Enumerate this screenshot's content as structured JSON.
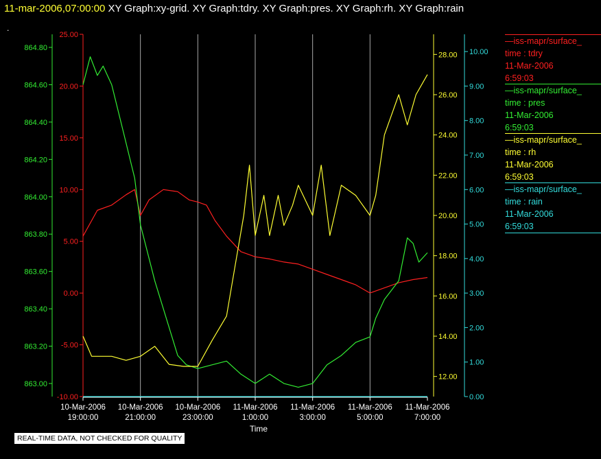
{
  "header": {
    "timestamp": "11-mar-2006,07:00:00",
    "graphs": "XY Graph:xy-grid.  XY Graph:tdry.  XY Graph:pres.  XY Graph:rh.  XY Graph:rain"
  },
  "dot": ".",
  "disclaimer": "REAL-TIME DATA, NOT CHECKED FOR QUALITY",
  "legend": [
    {
      "source": "iss-mapr/surface_",
      "field": "time : tdry",
      "date": "11-Mar-2006",
      "time": "6:59:03",
      "color": "#ff2020"
    },
    {
      "source": "iss-mapr/surface_",
      "field": "time : pres",
      "date": "11-Mar-2006",
      "time": "6:59:03",
      "color": "#33ee33"
    },
    {
      "source": "iss-mapr/surface_",
      "field": "time : rh",
      "date": "11-Mar-2006",
      "time": "6:59:03",
      "color": "#ffff33"
    },
    {
      "source": "iss-mapr/surface_",
      "field": "time : rain",
      "date": "11-Mar-2006",
      "time": "6:59:03",
      "color": "#33dddd"
    }
  ],
  "chart_data": {
    "type": "line",
    "xlabel": "Time",
    "x_ticks": [
      {
        "date": "10-Mar-2006",
        "time": "19:00:00",
        "hour": 0
      },
      {
        "date": "10-Mar-2006",
        "time": "21:00:00",
        "hour": 2
      },
      {
        "date": "10-Mar-2006",
        "time": "23:00:00",
        "hour": 4
      },
      {
        "date": "11-Mar-2006",
        "time": "1:00:00",
        "hour": 6
      },
      {
        "date": "11-Mar-2006",
        "time": "3:00:00",
        "hour": 8
      },
      {
        "date": "11-Mar-2006",
        "time": "5:00:00",
        "hour": 10
      },
      {
        "date": "11-Mar-2006",
        "time": "7:00:00",
        "hour": 12
      }
    ],
    "xlim": [
      0,
      12
    ],
    "grid": "vertical",
    "axes": {
      "pres": {
        "color": "#33ee33",
        "ylim": [
          862.93,
          864.87
        ],
        "ticks": [
          "863.00",
          "863.20",
          "863.40",
          "863.60",
          "863.80",
          "864.00",
          "864.20",
          "864.40",
          "864.60",
          "864.80"
        ]
      },
      "tdry": {
        "color": "#ff2020",
        "ylim": [
          -10.0,
          25.0
        ],
        "ticks": [
          "-10.00",
          "-5.00",
          "0.00",
          "5.00",
          "10.00",
          "15.00",
          "20.00",
          "25.00"
        ]
      },
      "rh": {
        "color": "#ffff33",
        "ylim": [
          11.0,
          29.0
        ],
        "ticks": [
          "12.00",
          "14.00",
          "16.00",
          "18.00",
          "20.00",
          "22.00",
          "24.00",
          "26.00",
          "28.00"
        ]
      },
      "rain": {
        "color": "#33dddd",
        "ylim": [
          0.0,
          10.5
        ],
        "ticks": [
          "0.00",
          "1.00",
          "2.00",
          "3.00",
          "4.00",
          "5.00",
          "6.00",
          "7.00",
          "8.00",
          "9.00",
          "10.00"
        ]
      }
    },
    "series": [
      {
        "name": "tdry",
        "axis": "tdry",
        "color": "#ff2020",
        "x": [
          0,
          0.5,
          1,
          1.5,
          1.8,
          2,
          2.3,
          2.8,
          3.3,
          3.7,
          4,
          4.3,
          4.6,
          5,
          5.5,
          6,
          6.5,
          7,
          7.5,
          8,
          8.5,
          9,
          9.5,
          10,
          10.5,
          11,
          11.5,
          12
        ],
        "y": [
          5.5,
          8,
          8.5,
          9.5,
          10,
          7.5,
          9,
          10,
          9.8,
          9,
          8.8,
          8.5,
          7,
          5.5,
          4,
          3.5,
          3.3,
          3,
          2.8,
          2.3,
          1.8,
          1.3,
          0.8,
          0,
          0.5,
          1,
          1.3,
          1.5
        ]
      },
      {
        "name": "pres",
        "axis": "pres",
        "color": "#33ee33",
        "x": [
          0,
          0.25,
          0.5,
          0.7,
          1,
          1.4,
          1.8,
          2,
          2.5,
          3,
          3.3,
          3.6,
          4,
          4.5,
          5,
          5.5,
          6,
          6.5,
          7,
          7.5,
          8,
          8.5,
          9,
          9.5,
          10,
          10.2,
          10.5,
          11,
          11.3,
          11.5,
          11.7,
          12
        ],
        "y": [
          864.6,
          864.75,
          864.65,
          864.7,
          864.6,
          864.35,
          864.1,
          863.85,
          863.55,
          863.3,
          863.15,
          863.1,
          863.08,
          863.1,
          863.12,
          863.05,
          863.0,
          863.05,
          863.0,
          862.98,
          863.0,
          863.1,
          863.15,
          863.22,
          863.25,
          863.35,
          863.45,
          863.55,
          863.78,
          863.75,
          863.65,
          863.7
        ]
      },
      {
        "name": "rh",
        "axis": "rh",
        "color": "#ffff33",
        "x": [
          0,
          0.3,
          0.7,
          1,
          1.5,
          2,
          2.5,
          3,
          3.5,
          4,
          4.5,
          5,
          5.3,
          5.6,
          5.8,
          6,
          6.3,
          6.5,
          6.8,
          7,
          7.3,
          7.5,
          8,
          8.3,
          8.6,
          9,
          9.5,
          10,
          10.2,
          10.5,
          11,
          11.3,
          11.6,
          12
        ],
        "y": [
          14,
          13,
          13,
          13,
          12.8,
          13,
          13.5,
          12.6,
          12.5,
          12.5,
          13.8,
          15,
          17.5,
          20,
          22.5,
          19,
          21,
          19,
          21,
          19.5,
          20.5,
          21.5,
          20,
          22.5,
          19,
          21.5,
          21,
          20,
          21,
          24,
          26,
          24.5,
          26,
          27
        ]
      },
      {
        "name": "rain",
        "axis": "rain",
        "color": "#33dddd",
        "x": [
          0,
          12
        ],
        "y": [
          0,
          0
        ]
      }
    ]
  }
}
